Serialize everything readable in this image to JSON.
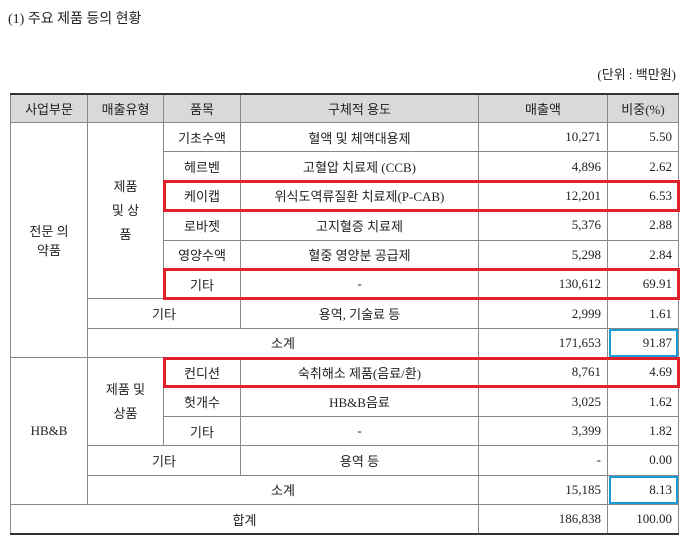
{
  "header": {
    "title": "(1) 주요 제품 등의 현황",
    "unit": "(단위 : 백만원)"
  },
  "table": {
    "columns": [
      "사업부문",
      "매출유형",
      "품목",
      "구체적 용도",
      "매출액",
      "비중(%)"
    ],
    "rows": [
      [
        "전문 의약품",
        "제품 및 상품",
        "기초수액",
        "혈액 및 체액대용제",
        "10,271",
        "5.50"
      ],
      [
        "헤르벤",
        "고혈압 치료제 (CCB)",
        "4,896",
        "2.62"
      ],
      [
        "케이캡",
        "위식도역류질환 치료제(P-CAB)",
        "12,201",
        "6.53"
      ],
      [
        "로바젯",
        "고지혈증 치료제",
        "5,376",
        "2.88"
      ],
      [
        "영양수액",
        "혈중 영양분 공급제",
        "5,298",
        "2.84"
      ],
      [
        "기타",
        "-",
        "130,612",
        "69.91"
      ],
      [
        "기타",
        "용역, 기술료 등",
        "2,999",
        "1.61"
      ],
      [
        "소계",
        "171,653",
        "91.87"
      ],
      [
        "HB&B",
        "제품 및 상품",
        "컨디션",
        "숙취해소 제품(음료/환)",
        "8,761",
        "4.69"
      ],
      [
        "헛개수",
        "HB&B음료",
        "3,025",
        "1.62"
      ],
      [
        "기타",
        "-",
        "3,399",
        "1.82"
      ],
      [
        "기타",
        "용역 등",
        "-",
        "0.00"
      ],
      [
        "소계",
        "15,185",
        "8.13"
      ],
      [
        "합계",
        "186,838",
        "100.00"
      ]
    ]
  }
}
